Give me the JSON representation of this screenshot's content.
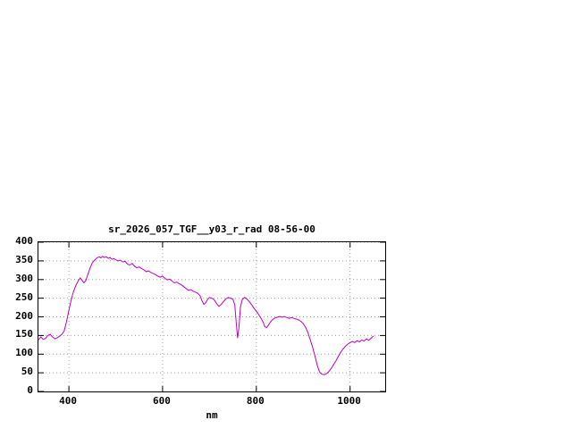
{
  "chart_data": {
    "type": "line",
    "title": "sr_2026_057_TGF__y03_r_rad 08-56-00",
    "xlabel": "nm",
    "ylabel": "",
    "xlim": [
      335,
      1075
    ],
    "ylim": [
      0,
      400
    ],
    "xticks": [
      400,
      600,
      800,
      1000
    ],
    "yticks": [
      0,
      50,
      100,
      150,
      200,
      250,
      300,
      350,
      400
    ],
    "grid": true,
    "legend_position": "none",
    "line_color": "#c000c0",
    "series": [
      {
        "points": [
          [
            335,
            138
          ],
          [
            340,
            146
          ],
          [
            345,
            140
          ],
          [
            350,
            142
          ],
          [
            355,
            150
          ],
          [
            360,
            153
          ],
          [
            365,
            146
          ],
          [
            370,
            141
          ],
          [
            375,
            144
          ],
          [
            380,
            148
          ],
          [
            385,
            153
          ],
          [
            390,
            162
          ],
          [
            395,
            188
          ],
          [
            400,
            218
          ],
          [
            405,
            246
          ],
          [
            410,
            268
          ],
          [
            415,
            284
          ],
          [
            420,
            297
          ],
          [
            424,
            304
          ],
          [
            428,
            298
          ],
          [
            432,
            291
          ],
          [
            436,
            297
          ],
          [
            440,
            312
          ],
          [
            445,
            330
          ],
          [
            450,
            345
          ],
          [
            455,
            352
          ],
          [
            460,
            358
          ],
          [
            465,
            361
          ],
          [
            468,
            358
          ],
          [
            472,
            362
          ],
          [
            476,
            359
          ],
          [
            480,
            361
          ],
          [
            484,
            357
          ],
          [
            488,
            359
          ],
          [
            492,
            354
          ],
          [
            496,
            356
          ],
          [
            500,
            353
          ],
          [
            505,
            350
          ],
          [
            510,
            352
          ],
          [
            515,
            347
          ],
          [
            520,
            349
          ],
          [
            525,
            341
          ],
          [
            530,
            339
          ],
          [
            535,
            343
          ],
          [
            540,
            336
          ],
          [
            545,
            331
          ],
          [
            550,
            334
          ],
          [
            555,
            329
          ],
          [
            560,
            326
          ],
          [
            565,
            321
          ],
          [
            570,
            323
          ],
          [
            575,
            319
          ],
          [
            580,
            316
          ],
          [
            585,
            313
          ],
          [
            590,
            309
          ],
          [
            595,
            306
          ],
          [
            600,
            309
          ],
          [
            605,
            303
          ],
          [
            610,
            299
          ],
          [
            615,
            301
          ],
          [
            620,
            296
          ],
          [
            625,
            291
          ],
          [
            630,
            293
          ],
          [
            635,
            289
          ],
          [
            640,
            286
          ],
          [
            645,
            281
          ],
          [
            650,
            276
          ],
          [
            655,
            271
          ],
          [
            660,
            273
          ],
          [
            665,
            269
          ],
          [
            670,
            266
          ],
          [
            675,
            263
          ],
          [
            680,
            256
          ],
          [
            684,
            243
          ],
          [
            688,
            233
          ],
          [
            692,
            238
          ],
          [
            696,
            247
          ],
          [
            700,
            252
          ],
          [
            705,
            250
          ],
          [
            710,
            246
          ],
          [
            715,
            236
          ],
          [
            720,
            228
          ],
          [
            725,
            233
          ],
          [
            730,
            241
          ],
          [
            735,
            248
          ],
          [
            740,
            252
          ],
          [
            745,
            250
          ],
          [
            750,
            247
          ],
          [
            754,
            232
          ],
          [
            757,
            185
          ],
          [
            760,
            143
          ],
          [
            763,
            172
          ],
          [
            766,
            226
          ],
          [
            770,
            247
          ],
          [
            775,
            252
          ],
          [
            780,
            248
          ],
          [
            785,
            241
          ],
          [
            790,
            232
          ],
          [
            795,
            223
          ],
          [
            800,
            215
          ],
          [
            805,
            206
          ],
          [
            810,
            196
          ],
          [
            815,
            184
          ],
          [
            818,
            174
          ],
          [
            822,
            171
          ],
          [
            826,
            178
          ],
          [
            830,
            186
          ],
          [
            835,
            193
          ],
          [
            840,
            197
          ],
          [
            845,
            199
          ],
          [
            850,
            201
          ],
          [
            855,
            199
          ],
          [
            860,
            201
          ],
          [
            865,
            198
          ],
          [
            870,
            196
          ],
          [
            875,
            198
          ],
          [
            880,
            196
          ],
          [
            885,
            194
          ],
          [
            890,
            192
          ],
          [
            895,
            188
          ],
          [
            900,
            182
          ],
          [
            905,
            172
          ],
          [
            910,
            158
          ],
          [
            915,
            139
          ],
          [
            920,
            119
          ],
          [
            925,
            95
          ],
          [
            930,
            70
          ],
          [
            935,
            52
          ],
          [
            940,
            46
          ],
          [
            945,
            45
          ],
          [
            950,
            48
          ],
          [
            955,
            54
          ],
          [
            960,
            62
          ],
          [
            965,
            72
          ],
          [
            970,
            82
          ],
          [
            975,
            94
          ],
          [
            980,
            105
          ],
          [
            985,
            114
          ],
          [
            990,
            121
          ],
          [
            995,
            127
          ],
          [
            1000,
            131
          ],
          [
            1005,
            134
          ],
          [
            1010,
            131
          ],
          [
            1015,
            136
          ],
          [
            1020,
            133
          ],
          [
            1025,
            138
          ],
          [
            1030,
            135
          ],
          [
            1035,
            141
          ],
          [
            1040,
            137
          ],
          [
            1045,
            143
          ],
          [
            1050,
            149
          ]
        ]
      }
    ]
  }
}
